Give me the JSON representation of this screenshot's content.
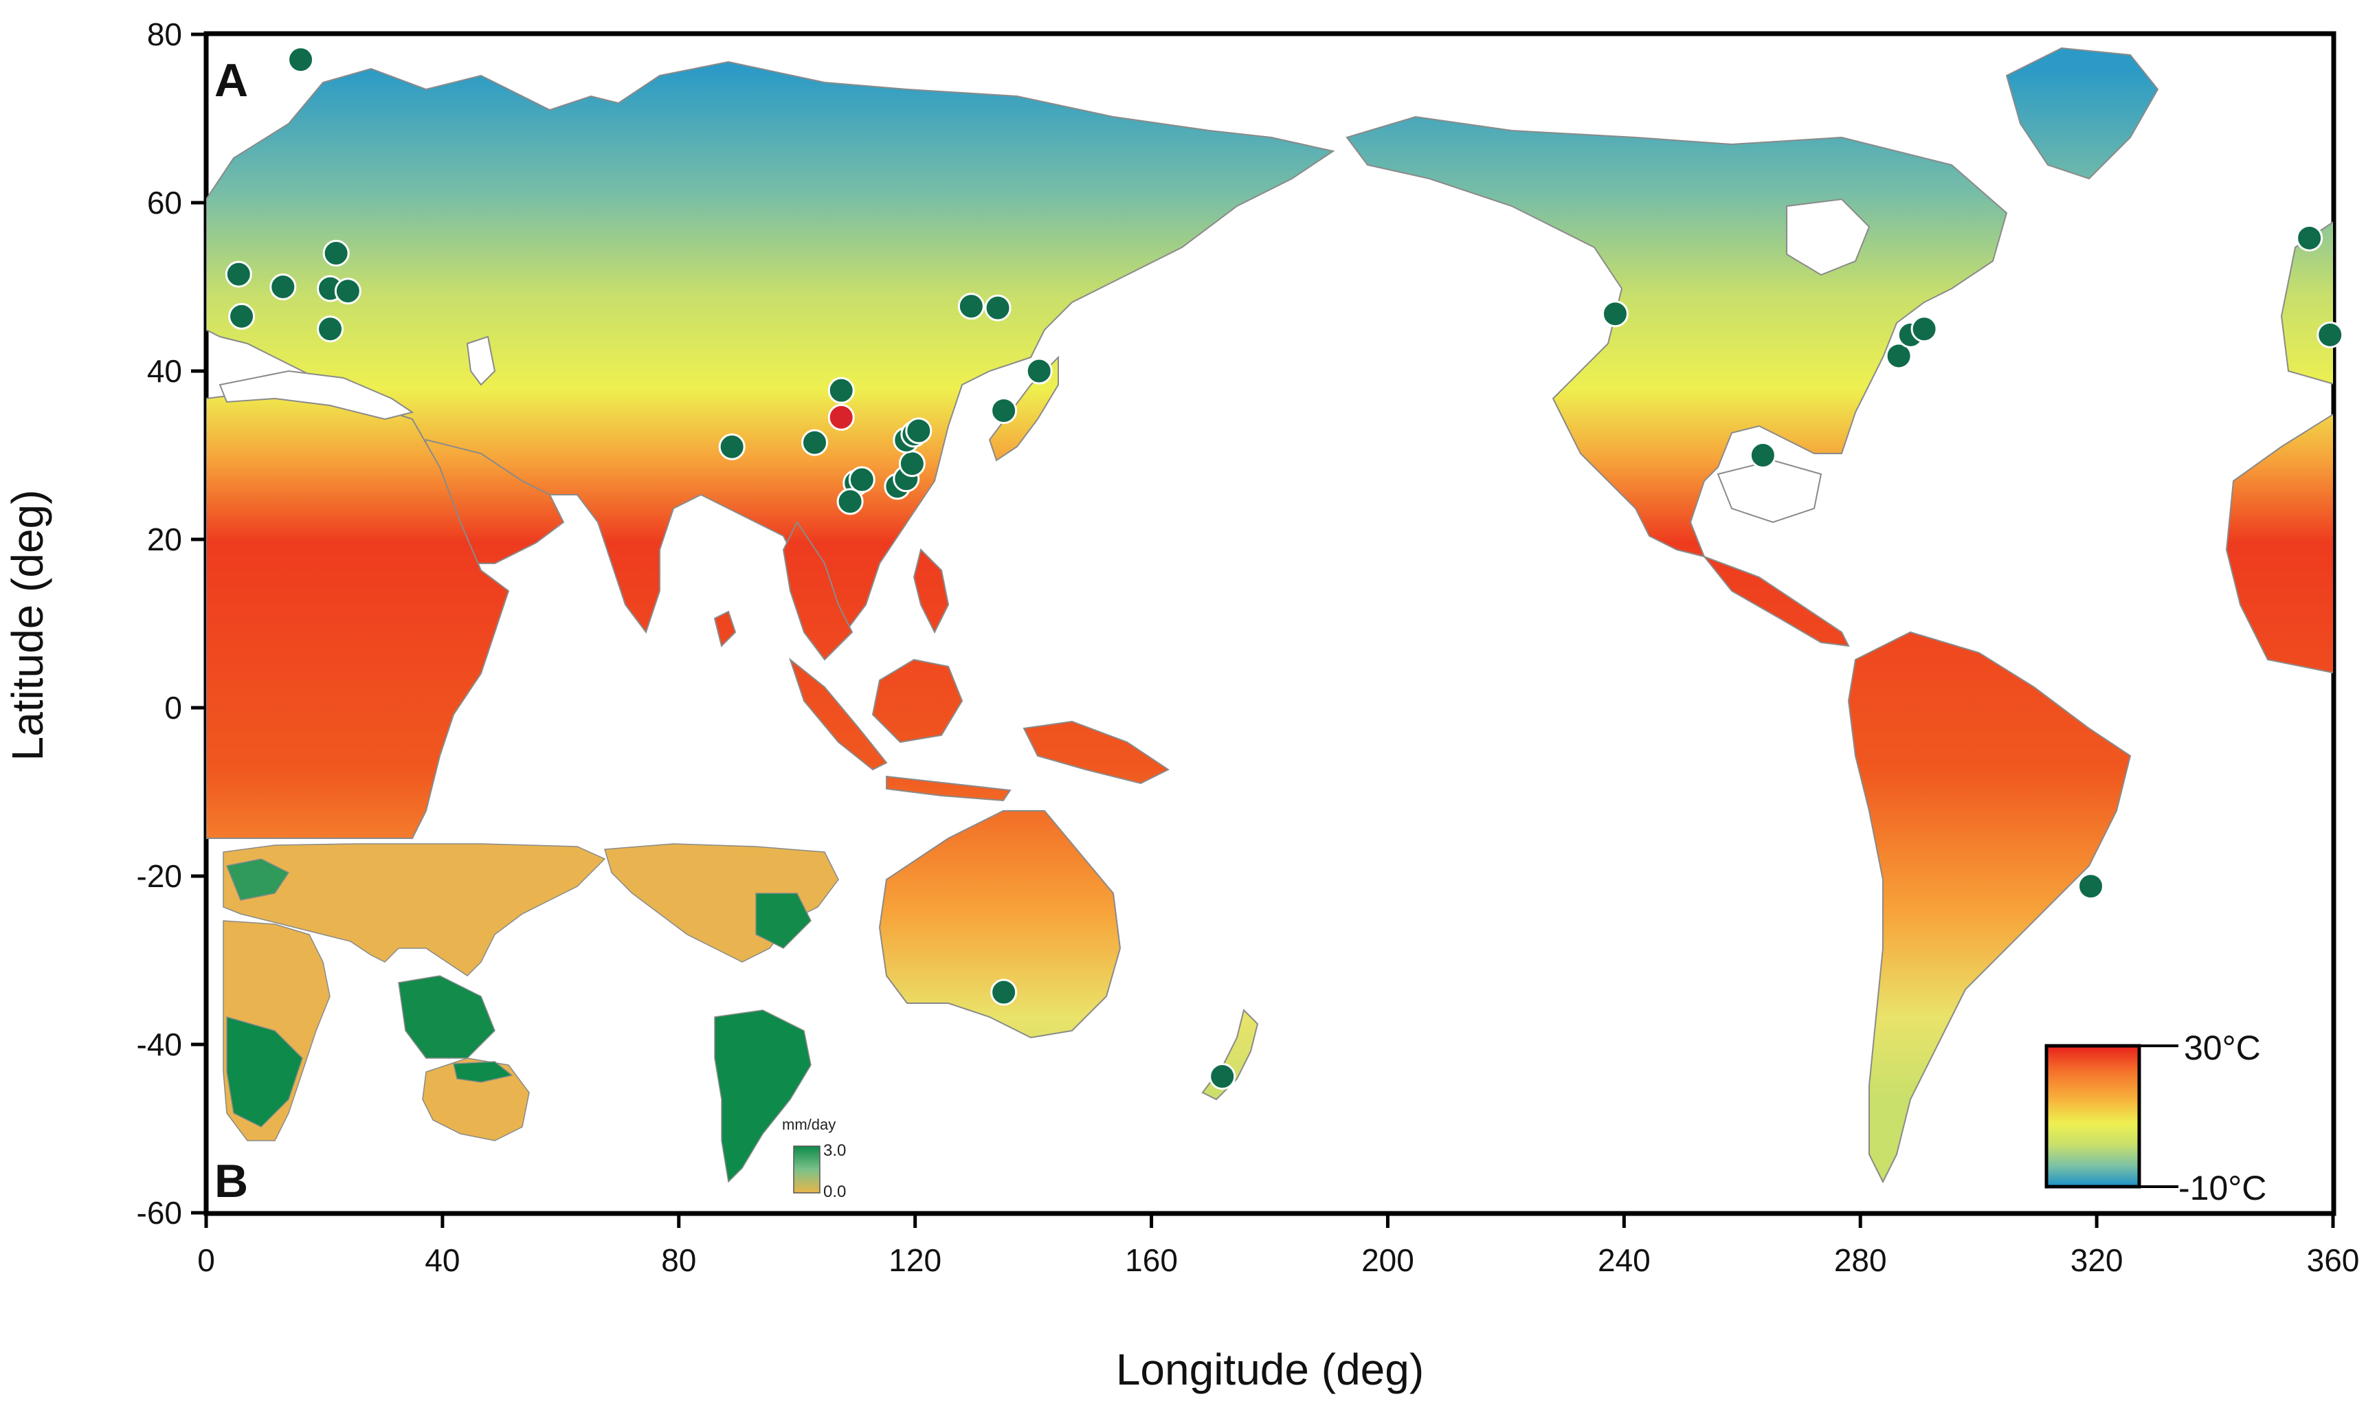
{
  "panel_a_label": "A",
  "panel_b_label": "B",
  "x_axis": {
    "label": "Longitude (deg)",
    "range": [
      0,
      360
    ],
    "ticks": [
      0,
      40,
      80,
      120,
      160,
      200,
      240,
      280,
      320,
      360
    ]
  },
  "y_axis": {
    "label": "Latitude (deg)",
    "range": [
      -60,
      80
    ],
    "ticks": [
      80,
      60,
      40,
      20,
      0,
      -20,
      -40,
      -60
    ]
  },
  "temperature_legend": {
    "max_label": "30°C",
    "min_label": "-10°C",
    "colors": [
      "#e8201c",
      "#f5712b",
      "#f7b23c",
      "#eef050",
      "#c9e06a",
      "#7cc2a4",
      "#1b90c9"
    ]
  },
  "inset_legend": {
    "unit": "mm/day",
    "max_label": "3.0",
    "min_label": "0.0",
    "colors": [
      "#0e8a4a",
      "#e8b54a"
    ]
  },
  "land_colors": {
    "hot": "#ee3b1f",
    "warm": "#f58a30",
    "mild": "#eef050",
    "cool": "#a8d083",
    "cold": "#2b9ac6"
  },
  "sites": [
    {
      "lon": 16,
      "lat": 77,
      "type": "other"
    },
    {
      "lon": 5.5,
      "lat": 51.5,
      "type": "other"
    },
    {
      "lon": 6,
      "lat": 46.5,
      "type": "other"
    },
    {
      "lon": 13,
      "lat": 50,
      "type": "other"
    },
    {
      "lon": 22,
      "lat": 54,
      "type": "other"
    },
    {
      "lon": 21,
      "lat": 49.8,
      "type": "other"
    },
    {
      "lon": 24,
      "lat": 49.5,
      "type": "other"
    },
    {
      "lon": 21,
      "lat": 45,
      "type": "other"
    },
    {
      "lon": 89,
      "lat": 31,
      "type": "other"
    },
    {
      "lon": 103,
      "lat": 31.5,
      "type": "other"
    },
    {
      "lon": 107.5,
      "lat": 37.7,
      "type": "other"
    },
    {
      "lon": 107.5,
      "lat": 34.5,
      "type": "focus"
    },
    {
      "lon": 110,
      "lat": 26.7,
      "type": "other"
    },
    {
      "lon": 111,
      "lat": 27.1,
      "type": "other"
    },
    {
      "lon": 109,
      "lat": 24.5,
      "type": "other"
    },
    {
      "lon": 117,
      "lat": 26.3,
      "type": "other"
    },
    {
      "lon": 118.5,
      "lat": 27.2,
      "type": "other"
    },
    {
      "lon": 119.5,
      "lat": 29,
      "type": "other"
    },
    {
      "lon": 118.5,
      "lat": 31.8,
      "type": "other"
    },
    {
      "lon": 119.8,
      "lat": 32.5,
      "type": "other"
    },
    {
      "lon": 120.6,
      "lat": 32.9,
      "type": "other"
    },
    {
      "lon": 129.5,
      "lat": 47.7,
      "type": "other"
    },
    {
      "lon": 134,
      "lat": 47.5,
      "type": "other"
    },
    {
      "lon": 135,
      "lat": 35.3,
      "type": "other"
    },
    {
      "lon": 141,
      "lat": 40,
      "type": "other"
    },
    {
      "lon": 238.5,
      "lat": 46.8,
      "type": "other"
    },
    {
      "lon": 263.5,
      "lat": 30,
      "type": "other"
    },
    {
      "lon": 286.5,
      "lat": 41.8,
      "type": "other"
    },
    {
      "lon": 288.5,
      "lat": 44.3,
      "type": "other"
    },
    {
      "lon": 290.8,
      "lat": 45,
      "type": "other"
    },
    {
      "lon": 356,
      "lat": 55.8,
      "type": "other"
    },
    {
      "lon": 359.5,
      "lat": 44.3,
      "type": "other"
    },
    {
      "lon": 135,
      "lat": -33.8,
      "type": "other"
    },
    {
      "lon": 172,
      "lat": -43.8,
      "type": "other"
    },
    {
      "lon": 319,
      "lat": -21.2,
      "type": "other"
    }
  ]
}
